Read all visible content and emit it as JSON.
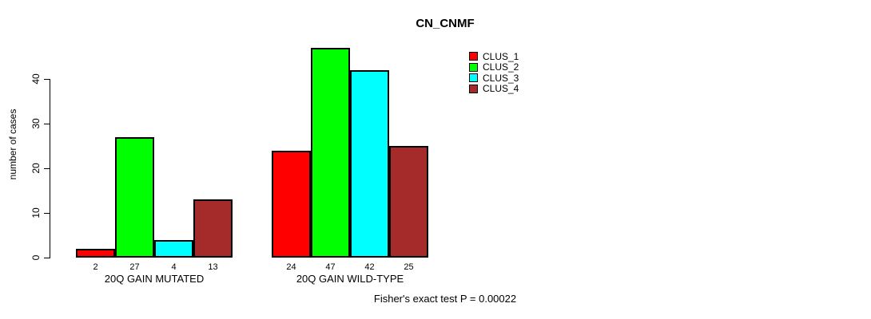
{
  "chart_data": {
    "type": "bar",
    "title": "CN_CNMF",
    "xlabel": "",
    "ylabel": "number of cases",
    "ylim": [
      0,
      47
    ],
    "yticks": [
      0,
      10,
      20,
      30,
      40
    ],
    "grid": false,
    "legend_position": "top-right-inside",
    "bar_value_labels": true,
    "categories": [
      "20Q GAIN MUTATED",
      "20Q GAIN WILD-TYPE"
    ],
    "series": [
      {
        "name": "CLUS_1",
        "color": "#ff0000",
        "values": [
          2,
          24
        ]
      },
      {
        "name": "CLUS_2",
        "color": "#00ff00",
        "values": [
          27,
          47
        ]
      },
      {
        "name": "CLUS_3",
        "color": "#00ffff",
        "values": [
          4,
          42
        ]
      },
      {
        "name": "CLUS_4",
        "color": "#a52a2a",
        "values": [
          13,
          25
        ]
      }
    ],
    "annotation": "Fisher's exact test P = 0.00022"
  },
  "colors": {
    "axis": "#000000",
    "text": "#000000",
    "background": "#ffffff"
  }
}
